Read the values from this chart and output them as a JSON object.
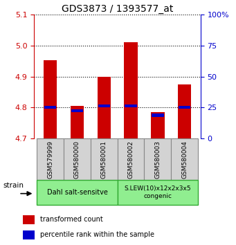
{
  "title": "GDS3873 / 1393577_at",
  "samples": [
    "GSM579999",
    "GSM580000",
    "GSM580001",
    "GSM580002",
    "GSM580003",
    "GSM580004"
  ],
  "red_values": [
    4.953,
    4.805,
    4.9,
    5.01,
    4.785,
    4.875
  ],
  "blue_values": [
    4.8,
    4.79,
    4.805,
    4.805,
    4.775,
    4.8
  ],
  "ylim_left": [
    4.7,
    5.1
  ],
  "yticks_left": [
    4.7,
    4.8,
    4.9,
    5.0,
    5.1
  ],
  "ylim_right": [
    0,
    100
  ],
  "yticks_right": [
    0,
    25,
    50,
    75,
    100
  ],
  "ytick_labels_right": [
    "0",
    "25",
    "50",
    "75",
    "100%"
  ],
  "base_value": 4.7,
  "group1_label": "Dahl salt-sensitve",
  "group2_label": "S.LEW(10)x12x2x3x5\ncongenic",
  "group_color": "#90EE90",
  "group_border": "#33AA33",
  "bar_color": "#CC0000",
  "blue_color": "#0000CC",
  "title_fontsize": 10,
  "strain_label": "strain",
  "legend1": "transformed count",
  "legend2": "percentile rank within the sample",
  "tick_label_color_left": "#CC0000",
  "tick_label_color_right": "#0000CC",
  "sample_box_color": "#D3D3D3",
  "sample_box_border": "#888888"
}
